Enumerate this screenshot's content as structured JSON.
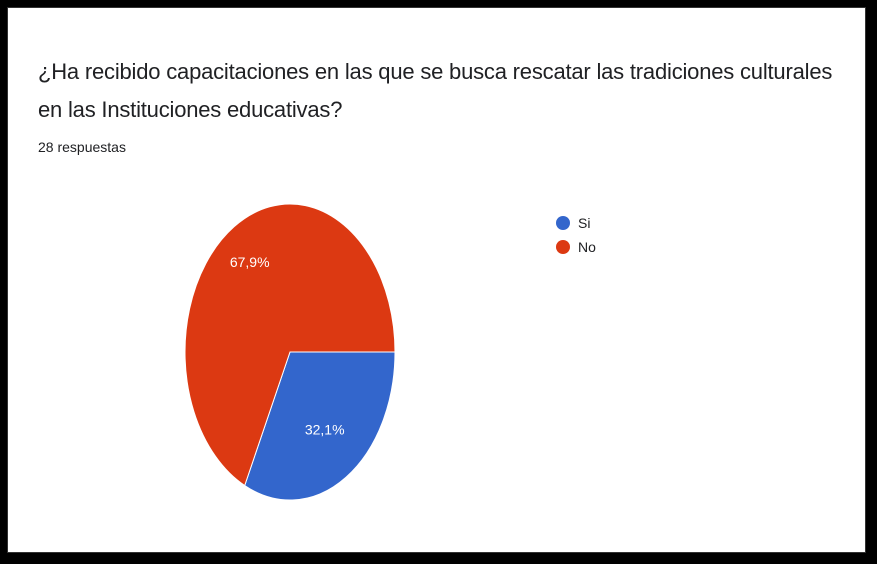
{
  "chart_data": {
    "type": "pie",
    "title": "¿Ha recibido capacitaciones en las que se busca rescatar las tradiciones culturales en las Instituciones educativas?",
    "subtitle": "28 respuestas",
    "slices": [
      {
        "label": "Si",
        "value": 32.1,
        "display": "32,1%",
        "color": "#3366CC"
      },
      {
        "label": "No",
        "value": 67.9,
        "display": "67,9%",
        "color": "#DC3912"
      }
    ],
    "legend_position": "right",
    "start_angle_deg": 90,
    "direction": "clockwise"
  }
}
